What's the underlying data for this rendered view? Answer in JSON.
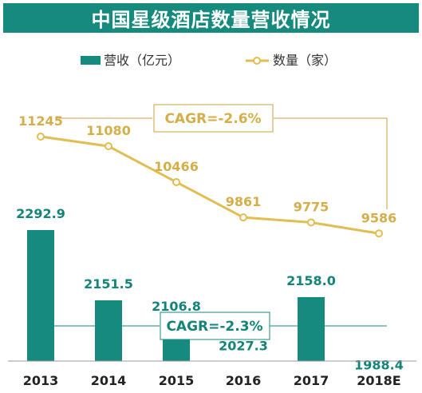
{
  "chart_data": {
    "type": "bar+line",
    "title": "中国星级酒店数量营收情况",
    "categories": [
      "2013",
      "2014",
      "2015",
      "2016",
      "2017",
      "2018E"
    ],
    "series": [
      {
        "name": "营收（亿元）",
        "type": "bar",
        "values": [
          2292.9,
          2151.5,
          2106.8,
          2027.3,
          2158.0,
          1988.4
        ],
        "labels": [
          "2292.9",
          "2151.5",
          "2106.8",
          "2027.3",
          "2158.0",
          "1988.4"
        ]
      },
      {
        "name": "数量（家）",
        "type": "line",
        "values": [
          11245,
          11080,
          10466,
          9861,
          9775,
          9586
        ],
        "labels": [
          "11245",
          "11080",
          "10466",
          "9861",
          "9775",
          "9586"
        ]
      }
    ],
    "annotations": {
      "line_cagr": "CAGR=-2.6%",
      "bar_cagr": "CAGR=-2.3%"
    },
    "legend_position": "top",
    "grid": false
  },
  "colors": {
    "title_bg": "#168a7c",
    "bar": "#168a7c",
    "line": "#e2bd52",
    "bar_label": "#138477",
    "line_label": "#d4ae48",
    "axis": "#9a9a9a"
  }
}
